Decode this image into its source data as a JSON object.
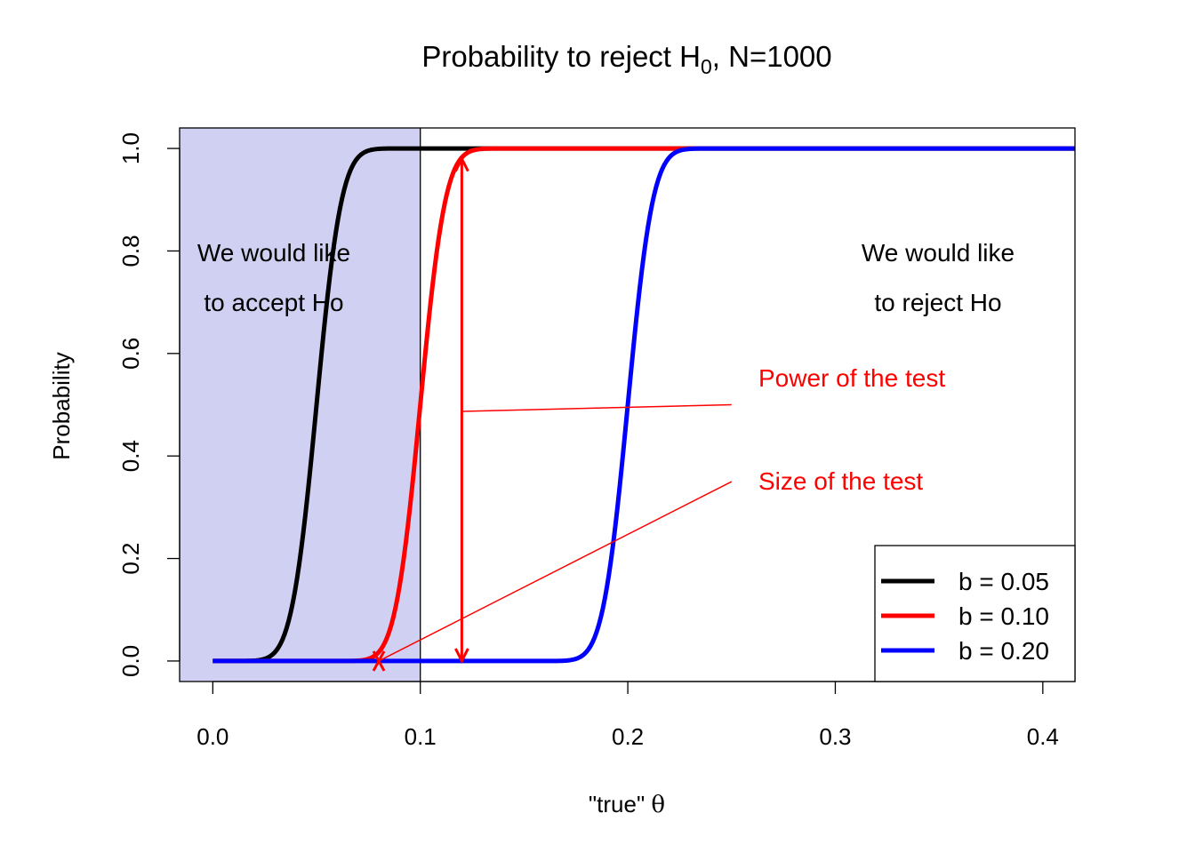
{
  "chart_data": {
    "type": "line",
    "title": "Probability to reject H",
    "title_subscript": "0",
    "title_suffix": ", N=1000",
    "xlabel": "\"true\" ",
    "xlabel_symbol": "θ",
    "ylabel": "Probability",
    "xlim": [
      -0.016,
      0.4155
    ],
    "ylim": [
      -0.04,
      1.04
    ],
    "x_ticks": [
      0.0,
      0.1,
      0.2,
      0.3,
      0.4
    ],
    "x_tick_labels": [
      "0.0",
      "0.1",
      "0.2",
      "0.3",
      "0.4"
    ],
    "y_ticks": [
      0.0,
      0.2,
      0.4,
      0.6,
      0.8,
      1.0
    ],
    "y_tick_labels": [
      "0.0",
      "0.2",
      "0.4",
      "0.6",
      "0.8",
      "1.0"
    ],
    "grid": false,
    "legend_position": "bottom-right",
    "shaded_region": {
      "x": [
        -0.016,
        0.1
      ],
      "color": "#d0d0f3"
    },
    "vertical_line_x": 0.1,
    "curve_sd": 0.00949,
    "series": [
      {
        "name": "b = 0.05",
        "center": 0.05,
        "color": "#000000"
      },
      {
        "name": "b = 0.10",
        "center": 0.1,
        "color": "#ff0000"
      },
      {
        "name": "b = 0.20",
        "center": 0.2,
        "color": "#0000ff"
      }
    ],
    "annotations": {
      "accept_line1": "We would like",
      "accept_line2": "to accept Ho",
      "reject_line1": "We would like",
      "reject_line2": "to reject Ho",
      "power_label": "Power of the test",
      "size_label": "Size of the test",
      "annotation_color": "#ff0000"
    },
    "power_arrow": {
      "x": 0.12,
      "y_top": 0.98,
      "y_bottom": 0.0
    },
    "size_marker": {
      "x": 0.08,
      "y": 0.0
    },
    "power_pointer": {
      "from": [
        0.12,
        0.487
      ],
      "to": [
        0.25,
        0.5
      ]
    },
    "size_pointer": {
      "from": [
        0.08,
        0.0
      ],
      "to": [
        0.25,
        0.35
      ]
    }
  }
}
